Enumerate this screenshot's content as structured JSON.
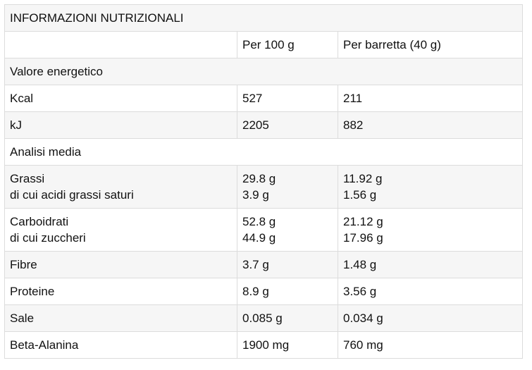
{
  "title": "INFORMAZIONI NUTRIZIONALI",
  "columns": [
    "",
    "Per 100 g",
    "Per barretta (40 g)"
  ],
  "rows": [
    {
      "type": "section",
      "label": "Valore energetico"
    },
    {
      "type": "data",
      "label": [
        "Kcal"
      ],
      "per100": [
        "527"
      ],
      "perBar": [
        "211"
      ]
    },
    {
      "type": "data",
      "label": [
        "kJ"
      ],
      "per100": [
        "2205"
      ],
      "perBar": [
        "882"
      ]
    },
    {
      "type": "section",
      "label": "Analisi media"
    },
    {
      "type": "data",
      "label": [
        "Grassi",
        "di cui acidi grassi saturi"
      ],
      "per100": [
        "29.8 g",
        "3.9 g"
      ],
      "perBar": [
        "11.92 g",
        "1.56 g"
      ]
    },
    {
      "type": "data",
      "label": [
        "Carboidrati",
        "di cui zuccheri"
      ],
      "per100": [
        "52.8 g",
        "44.9 g"
      ],
      "perBar": [
        "21.12 g",
        "17.96 g"
      ]
    },
    {
      "type": "data",
      "label": [
        "Fibre"
      ],
      "per100": [
        "3.7 g"
      ],
      "perBar": [
        "1.48 g"
      ]
    },
    {
      "type": "data",
      "label": [
        "Proteine"
      ],
      "per100": [
        "8.9 g"
      ],
      "perBar": [
        "3.56 g"
      ]
    },
    {
      "type": "data",
      "label": [
        "Sale"
      ],
      "per100": [
        "0.085 g"
      ],
      "perBar": [
        "0.034 g"
      ]
    },
    {
      "type": "data",
      "label": [
        "Beta-Alanina"
      ],
      "per100": [
        "1900 mg"
      ],
      "perBar": [
        "760 mg"
      ]
    }
  ]
}
